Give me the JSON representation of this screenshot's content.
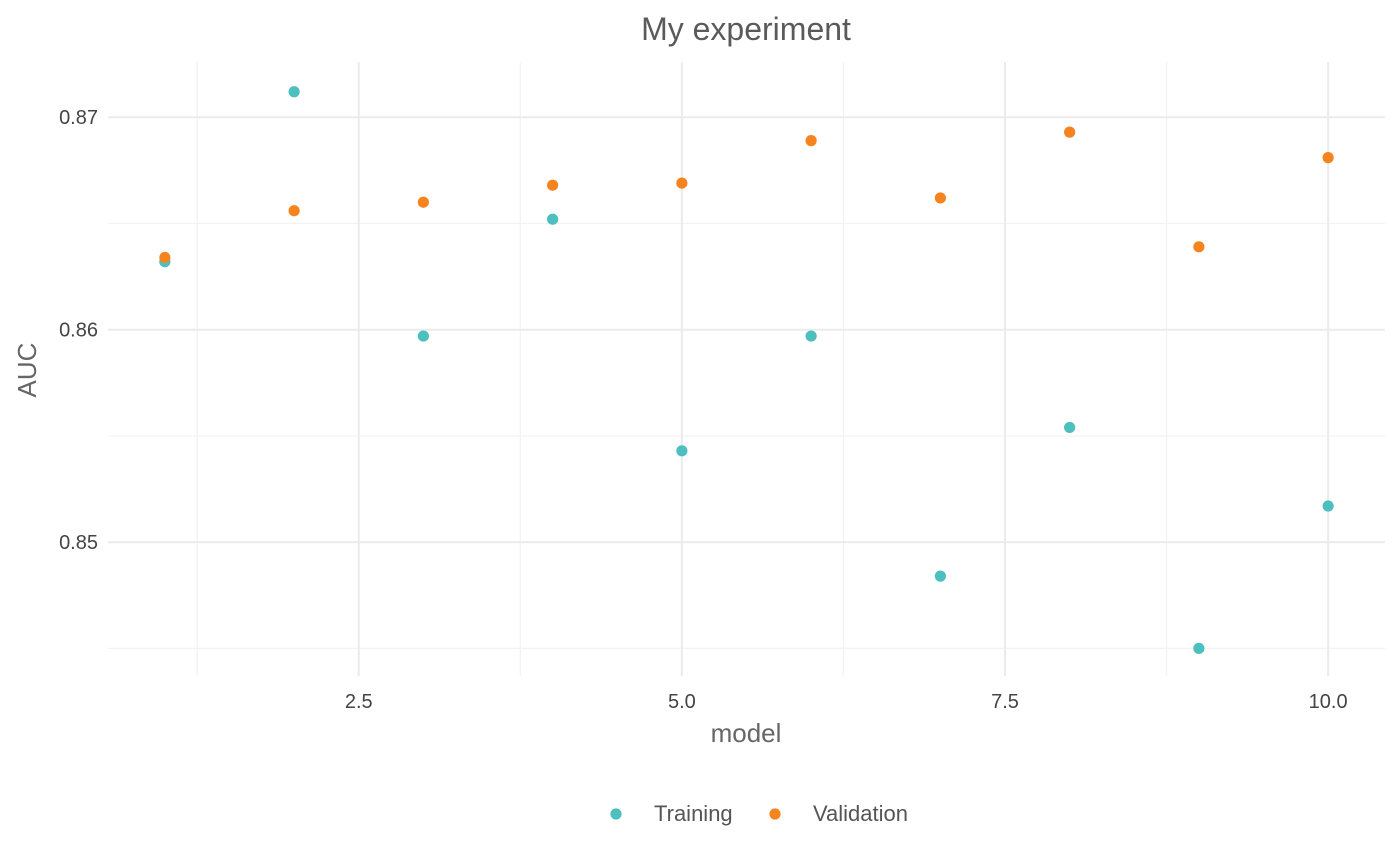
{
  "chart_data": {
    "type": "scatter",
    "title": "My experiment",
    "xlabel": "model",
    "ylabel": "AUC",
    "xlim": [
      0.56,
      10.44
    ],
    "ylim": [
      0.8437,
      0.8726
    ],
    "x_ticks": [
      2.5,
      5.0,
      7.5,
      10.0
    ],
    "x_tick_labels": [
      "2.5",
      "5.0",
      "7.5",
      "10.0"
    ],
    "y_ticks": [
      0.85,
      0.86,
      0.87
    ],
    "y_tick_labels": [
      "0.85",
      "0.86",
      "0.87"
    ],
    "grid": true,
    "legend_position": "bottom",
    "series": [
      {
        "name": "Training",
        "color": "#4dbfbf",
        "x": [
          1,
          2,
          3,
          4,
          5,
          6,
          7,
          8,
          9,
          10
        ],
        "y": [
          0.8632,
          0.8712,
          0.8597,
          0.8652,
          0.8543,
          0.8597,
          0.8484,
          0.8554,
          0.845,
          0.8517
        ]
      },
      {
        "name": "Validation",
        "color": "#f5841f",
        "x": [
          1,
          2,
          3,
          4,
          5,
          6,
          7,
          8,
          9,
          10
        ],
        "y": [
          0.8634,
          0.8656,
          0.866,
          0.8668,
          0.8669,
          0.8689,
          0.8662,
          0.8693,
          0.8639,
          0.8681
        ]
      }
    ]
  }
}
